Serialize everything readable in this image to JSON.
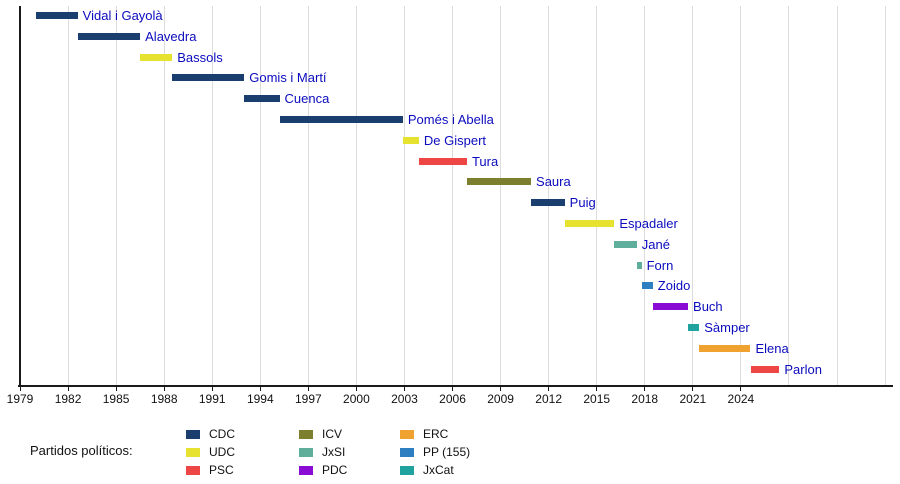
{
  "chart_data": {
    "type": "bar",
    "subtype": "horizontal-timeline-gantt",
    "title": "",
    "x_axis": {
      "min": 1979,
      "max": 2033.5,
      "tick_interval": 3,
      "ticks": [
        1979,
        1982,
        1985,
        1988,
        1991,
        1994,
        1997,
        2000,
        2003,
        2006,
        2009,
        2012,
        2015,
        2018,
        2021,
        2024
      ],
      "unlabeled_gridlines": [
        2027,
        2030,
        2033
      ]
    },
    "bars": [
      {
        "label": "Vidal i Gayolà",
        "party": "CDC",
        "start": 1980.0,
        "end": 1982.6
      },
      {
        "label": "Alavedra",
        "party": "CDC",
        "start": 1982.6,
        "end": 1986.5
      },
      {
        "label": "Bassols",
        "party": "UDC",
        "start": 1986.5,
        "end": 1988.5
      },
      {
        "label": "Gomis i Martí",
        "party": "CDC",
        "start": 1988.5,
        "end": 1993.0
      },
      {
        "label": "Cuenca",
        "party": "CDC",
        "start": 1993.0,
        "end": 1995.2
      },
      {
        "label": "Pomés i Abella",
        "party": "CDC",
        "start": 1995.2,
        "end": 2002.9
      },
      {
        "label": "De Gispert",
        "party": "UDC",
        "start": 2002.9,
        "end": 2003.9
      },
      {
        "label": "Tura",
        "party": "PSC",
        "start": 2003.9,
        "end": 2006.9
      },
      {
        "label": "Saura",
        "party": "ICV",
        "start": 2006.9,
        "end": 2010.9
      },
      {
        "label": "Puig",
        "party": "CDC",
        "start": 2010.9,
        "end": 2013.0
      },
      {
        "label": "Espadaler",
        "party": "UDC",
        "start": 2013.0,
        "end": 2016.1
      },
      {
        "label": "Jané",
        "party": "JxSI",
        "start": 2016.1,
        "end": 2017.5
      },
      {
        "label": "Forn",
        "party": "JxSI",
        "start": 2017.5,
        "end": 2017.8
      },
      {
        "label": "Zoido",
        "party": "PP (155)",
        "start": 2017.8,
        "end": 2018.5
      },
      {
        "label": "Buch",
        "party": "PDC",
        "start": 2018.5,
        "end": 2020.7
      },
      {
        "label": "Sàmper",
        "party": "JxCat",
        "start": 2020.7,
        "end": 2021.4
      },
      {
        "label": "Elena",
        "party": "ERC",
        "start": 2021.4,
        "end": 2024.6
      },
      {
        "label": "Parlon",
        "party": "PSC",
        "start": 2024.6,
        "end": 2026.4
      }
    ],
    "legend": {
      "title": "Partidos políticos:",
      "columns": [
        [
          {
            "label": "CDC",
            "color": "#1a3e6e"
          },
          {
            "label": "UDC",
            "color": "#e6e22f"
          },
          {
            "label": "PSC",
            "color": "#ee4545"
          }
        ],
        [
          {
            "label": "ICV",
            "color": "#7c802e"
          },
          {
            "label": "JxSI",
            "color": "#5fae9c"
          },
          {
            "label": "PDC",
            "color": "#8a0bd4"
          }
        ],
        [
          {
            "label": "ERC",
            "color": "#efa22f"
          },
          {
            "label": "PP (155)",
            "color": "#2e7fc2"
          },
          {
            "label": "JxCat",
            "color": "#20a39e"
          }
        ]
      ]
    },
    "colors": {
      "bar_label_text": "#0b0bbe",
      "axis": "#1a1a1a",
      "gridline": "#dcdcdc",
      "tick_text": "#111111",
      "background": "#ffffff"
    }
  }
}
